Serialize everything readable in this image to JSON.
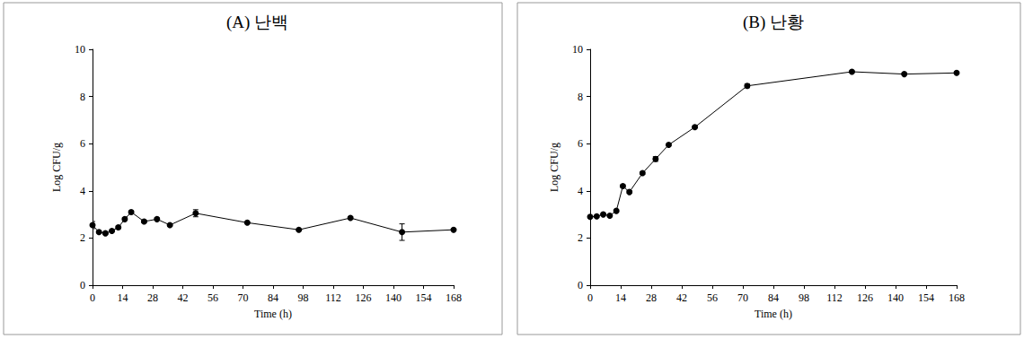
{
  "chart_data": [
    {
      "type": "line",
      "title": "(A) 난백",
      "x": [
        0,
        3,
        6,
        9,
        12,
        15,
        18,
        24,
        30,
        36,
        48,
        72,
        96,
        120,
        144,
        168
      ],
      "values": [
        2.55,
        2.25,
        2.2,
        2.3,
        2.45,
        2.8,
        3.1,
        2.7,
        2.8,
        2.55,
        3.05,
        2.65,
        2.35,
        2.85,
        2.25,
        2.35
      ],
      "errors": [
        0.15,
        0.03,
        0.03,
        0.03,
        0.05,
        0.05,
        0.05,
        0.05,
        0.05,
        0.03,
        0.15,
        0.03,
        0.03,
        0.05,
        0.35,
        0.03
      ],
      "x_label": "Time (h)",
      "y_label": "Log CFU/g",
      "xlim": [
        0,
        168
      ],
      "xticks": [
        0,
        14,
        28,
        42,
        56,
        70,
        84,
        98,
        112,
        126,
        140,
        154,
        168
      ],
      "ylim": [
        0,
        10
      ],
      "yticks": [
        0,
        2,
        4,
        6,
        8,
        10
      ],
      "color": "#000000",
      "marker": "circle",
      "grid": false
    },
    {
      "type": "line",
      "title": "(B) 난황",
      "x": [
        0,
        3,
        6,
        9,
        12,
        15,
        18,
        24,
        30,
        36,
        48,
        72,
        120,
        144,
        168
      ],
      "values": [
        2.9,
        2.92,
        3.0,
        2.95,
        3.15,
        4.2,
        3.95,
        4.75,
        5.35,
        5.95,
        6.7,
        8.45,
        9.05,
        8.95,
        9.0
      ],
      "errors": [
        0.03,
        0.03,
        0.03,
        0.03,
        0.03,
        0.05,
        0.05,
        0.05,
        0.1,
        0.03,
        0.03,
        0.08,
        0.03,
        0.03,
        0.03
      ],
      "x_label": "Time (h)",
      "y_label": "Log CFU/g",
      "xlim": [
        0,
        168
      ],
      "xticks": [
        0,
        14,
        28,
        42,
        56,
        70,
        84,
        98,
        112,
        126,
        140,
        154,
        168
      ],
      "ylim": [
        0,
        10
      ],
      "yticks": [
        0,
        2,
        4,
        6,
        8,
        10
      ],
      "color": "#000000",
      "marker": "circle",
      "grid": false
    }
  ]
}
